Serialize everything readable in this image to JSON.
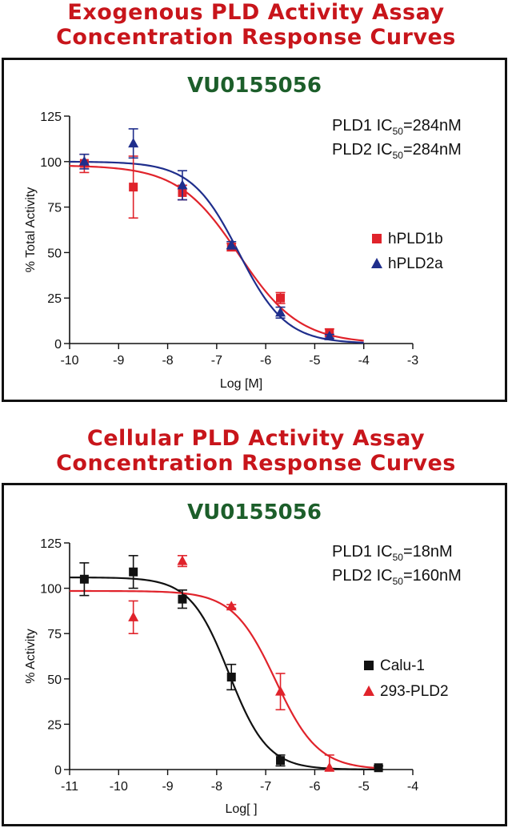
{
  "titles": {
    "top_line1": "Exogenous PLD Activity Assay",
    "top_line2": "Concentration Response Curves",
    "bottom_line1": "Cellular PLD Activity Assay",
    "bottom_line2": "Concentration Response Curves"
  },
  "chart_data": [
    {
      "type": "line",
      "title": "VU0155056",
      "xlabel": "Log [M]",
      "ylabel": "% Total Activity",
      "xlim": [
        -10,
        -3
      ],
      "ylim": [
        0,
        125
      ],
      "xticks": [
        -10,
        -9,
        -8,
        -7,
        -6,
        -5,
        -4,
        -3
      ],
      "yticks": [
        0,
        25,
        50,
        75,
        100,
        125
      ],
      "grid": false,
      "legend_position": "right",
      "annotations": [
        {
          "prefix": "PLD1 IC",
          "sub": "50",
          "suffix": "=284nM"
        },
        {
          "prefix": "PLD2 IC",
          "sub": "50",
          "suffix": "=284nM"
        }
      ],
      "series": [
        {
          "name": "hPLD1b",
          "marker": "square",
          "color": "#e0232b",
          "x": [
            -9.7,
            -8.7,
            -7.7,
            -6.7,
            -5.7,
            -4.7
          ],
          "y": [
            99,
            86,
            83,
            53,
            25,
            6
          ],
          "err": [
            5,
            17,
            4,
            2,
            3,
            2
          ],
          "fit": {
            "top": 98,
            "bottom": 0,
            "logec50": -6.55,
            "hill": -0.7,
            "range": [
              -10,
              -4
            ]
          }
        },
        {
          "name": "hPLD2a",
          "marker": "triangle",
          "color": "#1f2e8c",
          "x": [
            -9.7,
            -8.7,
            -7.7,
            -6.7,
            -5.7,
            -4.7
          ],
          "y": [
            100,
            110,
            87,
            54,
            17,
            4
          ],
          "err": [
            4,
            8,
            8,
            2,
            3,
            1
          ],
          "fit": {
            "top": 100,
            "bottom": 0,
            "logec50": -6.55,
            "hill": -0.9,
            "range": [
              -10,
              -4
            ]
          }
        }
      ]
    },
    {
      "type": "line",
      "title": "VU0155056",
      "xlabel": "Log[ ]",
      "ylabel": "% Activity",
      "xlim": [
        -11,
        -4
      ],
      "ylim": [
        0,
        125
      ],
      "xticks": [
        -11,
        -10,
        -9,
        -8,
        -7,
        -6,
        -5,
        -4
      ],
      "yticks": [
        0,
        25,
        50,
        75,
        100,
        125
      ],
      "grid": false,
      "legend_position": "right",
      "annotations": [
        {
          "prefix": "PLD1 IC",
          "sub": "50",
          "suffix": "=18nM"
        },
        {
          "prefix": "PLD2 IC",
          "sub": "50",
          "suffix": "=160nM"
        }
      ],
      "series": [
        {
          "name": "Calu-1",
          "marker": "square",
          "color": "#111111",
          "x": [
            -10.7,
            -9.7,
            -8.7,
            -7.7,
            -6.7,
            -4.7
          ],
          "y": [
            105,
            109,
            94,
            51,
            5,
            1
          ],
          "err": [
            9,
            9,
            5,
            7,
            3,
            1
          ],
          "fit": {
            "top": 106,
            "bottom": 0,
            "logec50": -7.75,
            "hill": -1.1,
            "range": [
              -11,
              -4.7
            ]
          }
        },
        {
          "name": "293-PLD2",
          "marker": "triangle",
          "color": "#e0232b",
          "x": [
            -9.7,
            -8.7,
            -7.7,
            -6.7,
            -5.7
          ],
          "y": [
            84,
            115,
            90,
            43,
            1
          ],
          "err": [
            9,
            3,
            1,
            10,
            7
          ],
          "fit": {
            "top": 98.5,
            "bottom": 0,
            "logec50": -6.8,
            "hill": -1.0,
            "range": [
              -11,
              -4.7
            ]
          }
        }
      ]
    }
  ]
}
